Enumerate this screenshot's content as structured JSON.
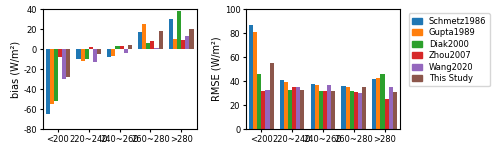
{
  "chart_data": [
    {
      "type": "bar",
      "categories": [
        "<200",
        "220~240",
        "240~260",
        "260~280",
        ">280"
      ],
      "y_label": "bias (W/m²)",
      "ylim": [
        -80,
        40
      ],
      "yticks": [
        -80,
        -60,
        -40,
        -20,
        0,
        20,
        40
      ],
      "series": [
        {
          "name": "Schmetz1986",
          "values": [
            -65,
            -10,
            -8,
            17,
            30
          ]
        },
        {
          "name": "Gupta1989",
          "values": [
            -55,
            -12,
            -7,
            25,
            10
          ]
        },
        {
          "name": "Diak2000",
          "values": [
            -52,
            -10,
            3,
            6,
            38
          ]
        },
        {
          "name": "Zhou2007",
          "values": [
            -8,
            2,
            3,
            8,
            9
          ]
        },
        {
          "name": "Wang2020",
          "values": [
            -30,
            -13,
            -4,
            1,
            13
          ]
        },
        {
          "name": "This Study",
          "values": [
            -28,
            -5,
            4,
            18,
            20
          ]
        }
      ]
    },
    {
      "type": "bar",
      "categories": [
        "<200",
        "220~240",
        "240~260",
        "260~280",
        ">280"
      ],
      "y_label": "RMSE (W/m²)",
      "ylim": [
        0,
        100
      ],
      "yticks": [
        0,
        20,
        40,
        60,
        80,
        100
      ],
      "legend": "upper left",
      "series": [
        {
          "name": "Schmetz1986",
          "values": [
            87,
            41,
            38,
            36,
            42
          ]
        },
        {
          "name": "Gupta1989",
          "values": [
            81,
            39,
            37,
            35,
            43
          ]
        },
        {
          "name": "Diak2000",
          "values": [
            46,
            33,
            32,
            32,
            46
          ]
        },
        {
          "name": "Zhou2007",
          "values": [
            32,
            35,
            32,
            31,
            25
          ]
        },
        {
          "name": "Wang2020",
          "values": [
            33,
            35,
            37,
            30,
            35
          ]
        },
        {
          "name": "This Study",
          "values": [
            55,
            33,
            32,
            35,
            31
          ]
        }
      ]
    }
  ]
}
